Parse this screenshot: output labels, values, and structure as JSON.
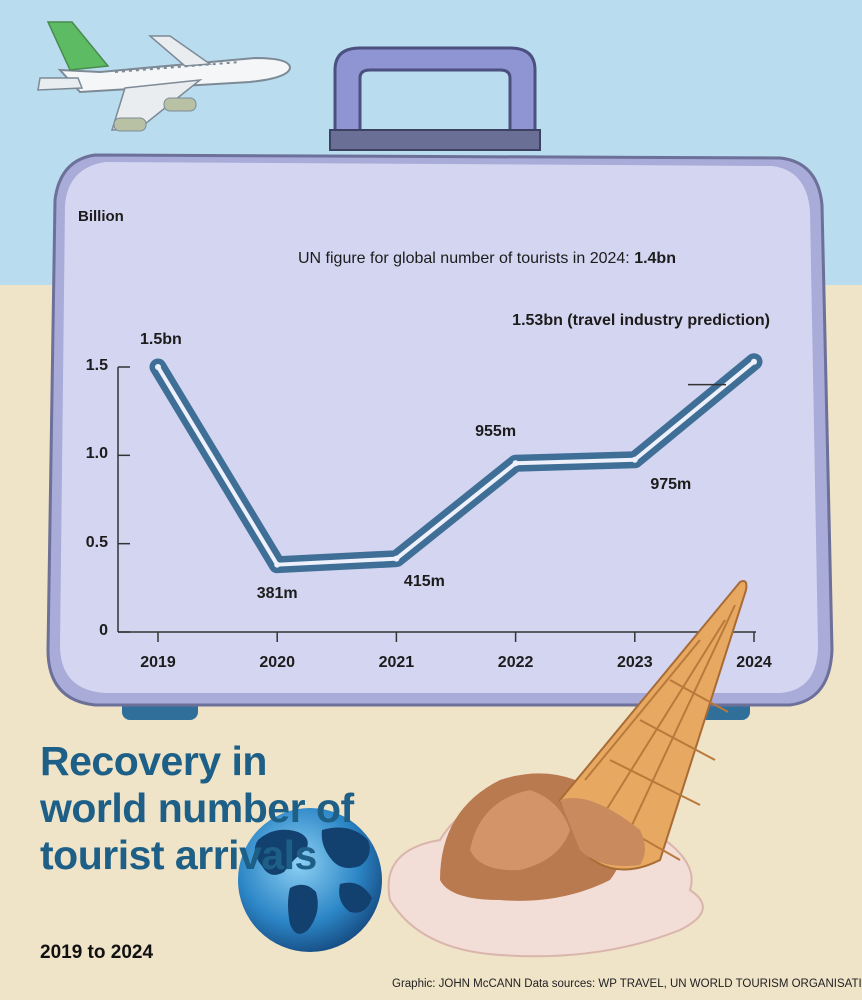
{
  "chart_data": {
    "type": "line",
    "ylabel": "Billion",
    "ylim": [
      0,
      1.5
    ],
    "yticks": [
      {
        "value": 0,
        "label": "0"
      },
      {
        "value": 0.5,
        "label": "0.5"
      },
      {
        "value": 1.0,
        "label": "1.0"
      },
      {
        "value": 1.5,
        "label": "1.5"
      }
    ],
    "categories": [
      "2019",
      "2020",
      "2021",
      "2022",
      "2023",
      "2024"
    ],
    "values": [
      1.5,
      0.381,
      0.415,
      0.955,
      0.975,
      1.53
    ],
    "data_labels": [
      "1.5bn",
      "381m",
      "415m",
      "955m",
      "975m",
      "1.53bn (travel industry prediction)"
    ],
    "annotation": {
      "text": "UN figure for global number of tourists in 2024:",
      "value_label": "1.4bn",
      "value": 1.4,
      "x": "2024"
    },
    "grid": false,
    "legend": "none",
    "line_color": "#3f6f97"
  },
  "title": "Recovery in world number of tourist arrivals",
  "subtitle": "2019 to 2024",
  "credit": "Graphic: JOHN McCANN  Data sources: WP TRAVEL, UN WORLD TOURISM ORGANISATION",
  "colors": {
    "sky": "#b9dcef",
    "sand": "#efe3c8",
    "suitcase": "#cfd0ee",
    "title": "#1d5f86"
  },
  "illustrations": [
    "airplane-icon",
    "suitcase-icon",
    "globe-icon",
    "ice-cream-icon"
  ]
}
